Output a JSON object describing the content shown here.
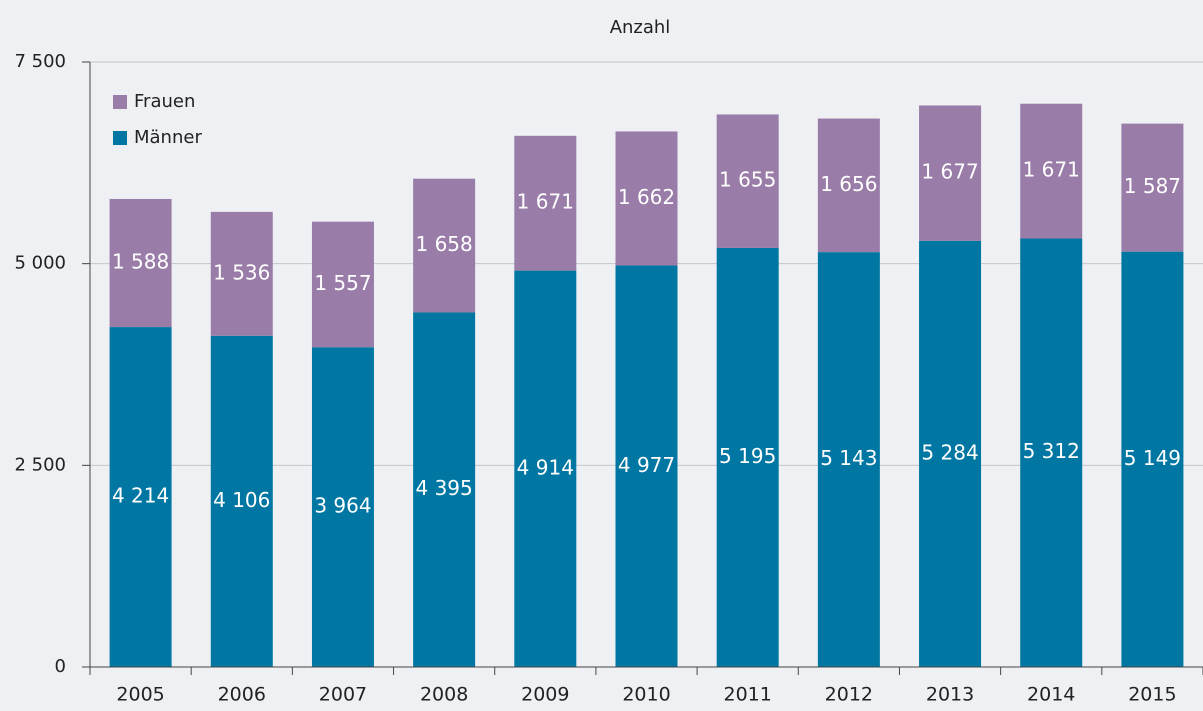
{
  "chart_data": {
    "type": "stacked-bar",
    "title": "Anzahl",
    "categories": [
      "2005",
      "2006",
      "2007",
      "2008",
      "2009",
      "2010",
      "2011",
      "2012",
      "2013",
      "2014",
      "2015"
    ],
    "series": [
      {
        "name": "Männer",
        "color": "#0077a3",
        "values": [
          4214,
          4106,
          3964,
          4395,
          4914,
          4977,
          5195,
          5143,
          5284,
          5312,
          5149
        ],
        "value_labels": [
          "4 214",
          "4 106",
          "3 964",
          "4 395",
          "4 914",
          "4 977",
          "5 195",
          "5 143",
          "5 284",
          "5 312",
          "5 149"
        ]
      },
      {
        "name": "Frauen",
        "color": "#9a7ca8",
        "values": [
          1588,
          1536,
          1557,
          1658,
          1671,
          1662,
          1655,
          1656,
          1677,
          1671,
          1587
        ],
        "value_labels": [
          "1 588",
          "1 536",
          "1 557",
          "1 658",
          "1 671",
          "1 662",
          "1 655",
          "1 656",
          "1 677",
          "1 671",
          "1 587"
        ]
      }
    ],
    "ylim": [
      0,
      7500
    ],
    "yticks": [
      0,
      {
        "value": 2500,
        "label": "2 500"
      },
      {
        "value": 5000,
        "label": "5 000"
      },
      {
        "value": 7500,
        "label": "7 500"
      }
    ],
    "grid": true,
    "legend": "top-left"
  }
}
